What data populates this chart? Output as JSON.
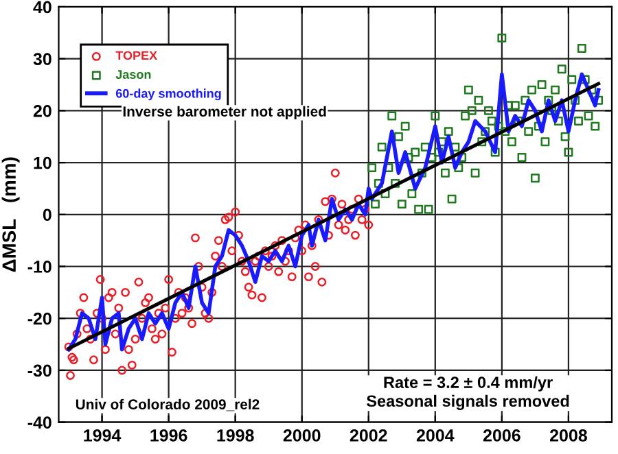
{
  "chart_data": {
    "type": "scatter",
    "ylabel": "ΔMSL   (mm)",
    "xlim": [
      1992.7,
      2009.3
    ],
    "ylim": [
      -40,
      40
    ],
    "xticks": [
      1994,
      1996,
      1998,
      2000,
      2002,
      2004,
      2006,
      2008
    ],
    "yticks": [
      -40,
      -30,
      -20,
      -10,
      0,
      10,
      20,
      30,
      40
    ],
    "grid": true,
    "legend": "top left",
    "annotations": [
      "Inverse barometer not applied",
      "Univ of Colorado 2009_rel2",
      "Rate = 3.2 ± 0.4 mm/yr\nSeasonal signals removed"
    ],
    "series": [
      {
        "name": "TOPEX",
        "marker": "circle",
        "color": "#e8202a",
        "x": [
          1993.0,
          1993.05,
          1993.1,
          1993.15,
          1993.25,
          1993.35,
          1993.45,
          1993.55,
          1993.65,
          1993.75,
          1993.85,
          1993.95,
          1994.0,
          1994.1,
          1994.2,
          1994.3,
          1994.4,
          1994.5,
          1994.6,
          1994.7,
          1994.8,
          1994.9,
          1995.0,
          1995.1,
          1995.2,
          1995.3,
          1995.4,
          1995.5,
          1995.6,
          1995.7,
          1995.8,
          1995.9,
          1996.0,
          1996.1,
          1996.2,
          1996.3,
          1996.4,
          1996.5,
          1996.6,
          1996.7,
          1996.8,
          1996.9,
          1997.0,
          1997.1,
          1997.2,
          1997.3,
          1997.4,
          1997.5,
          1997.6,
          1997.7,
          1997.8,
          1997.9,
          1998.0,
          1998.1,
          1998.2,
          1998.3,
          1998.4,
          1998.5,
          1998.6,
          1998.7,
          1998.8,
          1998.9,
          1999.0,
          1999.1,
          1999.2,
          1999.3,
          1999.4,
          1999.5,
          1999.6,
          1999.7,
          1999.8,
          1999.9,
          2000.0,
          2000.1,
          2000.2,
          2000.3,
          2000.4,
          2000.5,
          2000.6,
          2000.7,
          2000.8,
          2000.9,
          2001.0,
          2001.1,
          2001.2,
          2001.3,
          2001.4,
          2001.5,
          2001.6,
          2001.7,
          2001.8,
          2001.9,
          2002.0
        ],
        "values": [
          -25.5,
          -31,
          -27.5,
          -28,
          -23,
          -19,
          -16,
          -22,
          -24,
          -28,
          -19,
          -12.5,
          -20,
          -26,
          -16,
          -15,
          -23,
          -18,
          -30,
          -15,
          -26,
          -29,
          -24,
          -13,
          -20,
          -17,
          -16,
          -22,
          -24,
          -19,
          -23,
          -18,
          -12.5,
          -26.5,
          -20,
          -15,
          -19,
          -16,
          -18,
          -21,
          -4.5,
          -10,
          -14,
          -19,
          -20,
          -15,
          -8,
          -5,
          -10,
          -1,
          -0.5,
          -7,
          0.5,
          -4,
          -9,
          -11,
          -14,
          -15.5,
          -9,
          -8,
          -16,
          -7,
          -10,
          -8,
          -6,
          -11,
          -5,
          -9,
          -7,
          -12,
          -4.5,
          -3,
          -7,
          -2,
          -12,
          -6,
          -10,
          -1,
          -13,
          2.5,
          -4,
          3,
          8,
          -2,
          2,
          -3,
          -1,
          1,
          -4,
          3,
          -1,
          1,
          -2
        ]
      },
      {
        "name": "Jason",
        "marker": "square",
        "color": "#1f7a1f",
        "x": [
          2002.1,
          2002.2,
          2002.3,
          2002.4,
          2002.5,
          2002.6,
          2002.7,
          2002.8,
          2002.9,
          2003.0,
          2003.1,
          2003.2,
          2003.3,
          2003.4,
          2003.5,
          2003.6,
          2003.7,
          2003.8,
          2003.9,
          2004.0,
          2004.1,
          2004.2,
          2004.3,
          2004.4,
          2004.5,
          2004.6,
          2004.7,
          2004.8,
          2004.9,
          2005.0,
          2005.1,
          2005.2,
          2005.3,
          2005.4,
          2005.5,
          2005.6,
          2005.7,
          2005.8,
          2005.9,
          2006.0,
          2006.1,
          2006.2,
          2006.3,
          2006.4,
          2006.5,
          2006.6,
          2006.7,
          2006.8,
          2006.9,
          2007.0,
          2007.1,
          2007.2,
          2007.3,
          2007.4,
          2007.5,
          2007.6,
          2007.7,
          2007.8,
          2007.9,
          2008.0,
          2008.1,
          2008.2,
          2008.3,
          2008.4,
          2008.5,
          2008.6,
          2008.7,
          2008.8,
          2008.9
        ],
        "values": [
          9,
          2,
          6,
          13,
          4,
          9,
          19,
          6,
          15,
          2,
          17,
          11,
          4,
          12,
          1,
          8,
          13,
          1,
          11,
          19,
          12,
          14,
          8,
          16,
          3,
          13,
          9,
          11,
          19,
          24,
          20,
          8,
          22,
          14,
          16,
          20,
          18,
          12,
          17,
          34,
          16,
          21,
          14,
          21,
          18,
          11,
          22,
          16,
          24,
          7,
          17,
          25,
          14,
          22,
          20,
          24,
          18,
          28,
          15,
          12,
          26,
          22,
          18,
          32,
          26,
          19,
          24,
          17,
          22
        ]
      },
      {
        "name": "60-day smoothing",
        "type": "line",
        "marker": "none",
        "line_style": "solid",
        "color": "#1a1aff",
        "x": [
          1993.0,
          1993.2,
          1993.4,
          1993.6,
          1993.8,
          1994.0,
          1994.1,
          1994.3,
          1994.5,
          1994.6,
          1994.8,
          1995.0,
          1995.2,
          1995.4,
          1995.6,
          1995.8,
          1996.0,
          1996.2,
          1996.4,
          1996.6,
          1996.8,
          1997.0,
          1997.2,
          1997.4,
          1997.6,
          1997.8,
          1998.0,
          1998.2,
          1998.4,
          1998.6,
          1998.8,
          1999.0,
          1999.2,
          1999.4,
          1999.6,
          1999.8,
          2000.0,
          2000.2,
          2000.3,
          2000.5,
          2000.7,
          2000.9,
          2001.1,
          2001.3,
          2001.5,
          2001.7,
          2001.9,
          2002.0,
          2002.1,
          2002.4,
          2002.7,
          2002.9,
          2003.1,
          2003.4,
          2003.7,
          2004.0,
          2004.2,
          2004.4,
          2004.6,
          2004.8,
          2005.0,
          2005.2,
          2005.5,
          2005.8,
          2006.0,
          2006.2,
          2006.4,
          2006.6,
          2006.8,
          2007.0,
          2007.2,
          2007.4,
          2007.6,
          2007.8,
          2008.0,
          2008.2,
          2008.4,
          2008.6,
          2008.8,
          2008.9
        ],
        "values": [
          -26,
          -24,
          -19,
          -20,
          -24,
          -16,
          -25,
          -20,
          -19,
          -26,
          -22,
          -20,
          -24,
          -19,
          -21,
          -19,
          -22,
          -17,
          -15,
          -18,
          -10,
          -17,
          -19,
          -10,
          -8,
          -3,
          -4,
          -6,
          -9,
          -13,
          -8,
          -9,
          -7,
          -9,
          -6,
          -10,
          -4,
          -2,
          -6,
          -1,
          -5,
          3,
          -1,
          1,
          -1,
          2,
          0,
          5,
          3,
          6,
          16,
          8,
          12,
          5,
          9,
          17,
          10,
          15,
          9,
          12,
          14,
          18,
          16,
          12,
          27,
          16,
          19,
          17,
          22,
          20,
          16,
          22,
          18,
          22,
          16,
          22,
          27,
          24,
          21,
          24
        ]
      },
      {
        "type": "line",
        "marker": "none",
        "line_style": "solid",
        "color": "#000000",
        "x": [
          1993.0,
          2008.9
        ],
        "values": [
          -25.8,
          25.2
        ]
      }
    ]
  }
}
